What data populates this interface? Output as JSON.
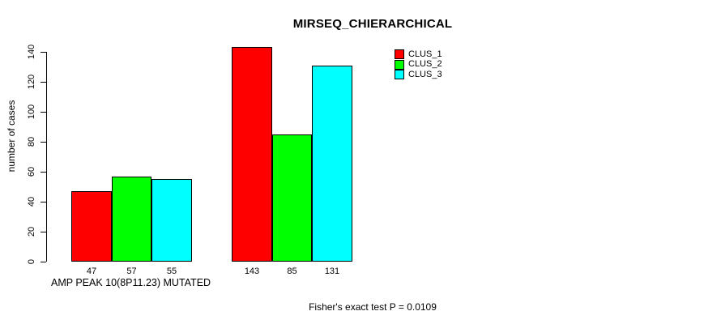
{
  "chart_data": {
    "type": "bar",
    "title": "MIRSEQ_CHIERARCHICAL",
    "ylabel": "number of cases",
    "xlabel": "AMP PEAK 10(8P11.23) MUTATED",
    "annotation": "Fisher's exact test P = 0.0109",
    "ylim": [
      0,
      140
    ],
    "yticks": [
      0,
      20,
      40,
      60,
      80,
      100,
      120,
      140
    ],
    "grid": false,
    "legend_position": "topright",
    "categories": [
      "AMP PEAK 10(8P11.23) MUTATED",
      ""
    ],
    "series": [
      {
        "name": "CLUS_1",
        "color": "#FF0000",
        "values": [
          47,
          143
        ]
      },
      {
        "name": "CLUS_2",
        "color": "#00FF00",
        "values": [
          57,
          85
        ]
      },
      {
        "name": "CLUS_3",
        "color": "#00FFFF",
        "values": [
          55,
          131
        ]
      }
    ],
    "bar_labels": [
      [
        "47",
        "57",
        "55"
      ],
      [
        "143",
        "85",
        "131"
      ]
    ],
    "colors": {
      "background": "#FFFFFF",
      "axis": "#000000",
      "text": "#000000"
    }
  }
}
